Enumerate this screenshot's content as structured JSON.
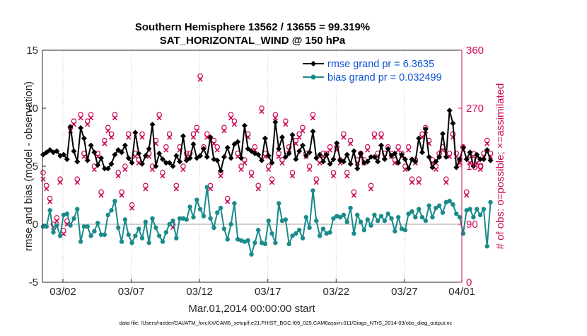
{
  "chart_data": {
    "type": "line",
    "title_line1": "Southern Hemisphere 13562 / 13655 = 99.319%",
    "title_line2": "SAT_HORIZONTAL_WIND @ 150 hPa",
    "ylabel": "rmse and bias (model - observation)",
    "y2label": "# of obs: o=possible; ×=assimilated",
    "xlabel": "Mar.01,2014 00:00:00 start",
    "footer": "data file: /Users/raeder/DAI/ATM_forcXX/CAM6_setup/f.e21.FHIST_BGC.f09_025.CAM6assim.011/Diags_NTrS_2014-03/obs_diag_output.nc",
    "ylim": [
      -5,
      15
    ],
    "y2lim": [
      0,
      360
    ],
    "xlim": [
      0.5,
      31.2
    ],
    "yticks": [
      "-5",
      "0",
      "5",
      "10",
      "15"
    ],
    "y2ticks": [
      "0",
      "90",
      "180",
      "270",
      "360"
    ],
    "xticks": [
      {
        "day": 2,
        "label": "03/02"
      },
      {
        "day": 7,
        "label": "03/07"
      },
      {
        "day": 12,
        "label": "03/12"
      },
      {
        "day": 17,
        "label": "03/17"
      },
      {
        "day": 22,
        "label": "03/22"
      },
      {
        "day": 27,
        "label": "03/27"
      },
      {
        "day": 32,
        "label": "04/01"
      }
    ],
    "series": [
      {
        "name": "rmse grand pr = 6.3635",
        "color": "#000000",
        "marker": "diamond",
        "x0": 0.55,
        "dx": 0.25,
        "values": [
          6.0,
          6.2,
          6.4,
          6.2,
          6.3,
          5.9,
          6.0,
          5.6,
          8.4,
          6.3,
          5.4,
          8.3,
          7.4,
          5.5,
          6.8,
          6.2,
          5.1,
          5.7,
          4.8,
          4.8,
          5.2,
          6.0,
          6.4,
          6.2,
          6.8,
          5.7,
          5.3,
          7.9,
          6.1,
          5.2,
          5.9,
          6.5,
          8.6,
          5.0,
          6.1,
          5.6,
          5.3,
          5.3,
          5.0,
          5.9,
          5.4,
          7.6,
          5.5,
          5.7,
          6.9,
          5.7,
          5.9,
          6.5,
          5.8,
          7.5,
          5.6,
          5.5,
          4.6,
          5.8,
          6.6,
          5.7,
          6.9,
          7.1,
          5.7,
          8.5,
          6.5,
          6.3,
          6.1,
          6.0,
          5.5,
          7.4,
          5.9,
          5.3,
          8.8,
          6.5,
          7.5,
          5.8,
          6.1,
          7.7,
          5.6,
          6.3,
          6.8,
          5.9,
          6.2,
          8.0,
          5.7,
          6.0,
          5.4,
          6.0,
          5.2,
          5.6,
          7.0,
          5.5,
          5.4,
          6.0,
          5.2,
          6.3,
          4.8,
          6.1,
          5.3,
          5.4,
          5.8,
          5.8,
          5.4,
          6.8,
          5.6,
          6.5,
          5.9,
          6.1,
          5.3,
          6.0,
          5.6,
          4.8,
          5.6,
          5.4,
          7.4,
          6.2,
          8.2,
          5.8,
          4.9,
          5.4,
          5.8,
          7.8,
          5.8,
          9.8,
          8.7,
          4.9,
          5.6,
          6.6,
          5.6,
          6.2,
          5.0,
          6.0,
          5.6,
          5.6,
          6.4,
          5.5
        ]
      },
      {
        "name": "bias grand pr = 0.032499",
        "color": "#1a8a8a",
        "marker": "circle",
        "x0": 0.55,
        "dx": 0.25,
        "values": [
          -0.2,
          -0.2,
          1.2,
          -0.7,
          -0.1,
          -1.0,
          0.8,
          0.9,
          -0.1,
          0.5,
          1.3,
          -1.5,
          -0.2,
          -0.2,
          -1.0,
          -0.6,
          0.1,
          -0.9,
          -0.9,
          0.8,
          1.2,
          2.0,
          -0.3,
          -1.5,
          0.4,
          -0.9,
          -1.6,
          -1.0,
          -0.4,
          -1.2,
          0.2,
          -1.6,
          0.5,
          -0.3,
          -1.0,
          -1.5,
          -0.7,
          0.0,
          0.3,
          -1.2,
          0.5,
          0.5,
          0.4,
          1.5,
          0.6,
          2.1,
          1.3,
          0.7,
          3.2,
          0.5,
          -0.3,
          1.0,
          1.4,
          -0.4,
          -1.3,
          0.0,
          1.8,
          -1.3,
          -1.4,
          -1.5,
          -1.4,
          -2.6,
          -1.6,
          -0.5,
          -1.6,
          -1.7,
          0.3,
          -0.8,
          -1.6,
          1.8,
          0.3,
          0.4,
          -1.7,
          -1.0,
          -0.8,
          -0.5,
          -1.2,
          0.6,
          -0.3,
          2.9,
          0.3,
          -1.0,
          -0.4,
          -0.8,
          -0.7,
          0.5,
          0.7,
          0.6,
          0.8,
          0.2,
          1.4,
          -0.8,
          0.8,
          0.2,
          -0.5,
          0.4,
          -0.1,
          0.8,
          0.3,
          0.7,
          0.3,
          0.9,
          0.5,
          -0.6,
          0.6,
          -0.4,
          -0.5,
          0.9,
          1.1,
          0.6,
          1.3,
          0.6,
          0.3,
          1.6,
          0.6,
          1.4,
          1.6,
          1.0,
          1.9,
          2.0,
          1.7,
          0.9,
          0.6,
          -0.8,
          1.2,
          1.3,
          0.6,
          1.3,
          0.8,
          1.3,
          -1.9,
          1.9
        ]
      }
    ],
    "obs_possible": {
      "name": "possible obs",
      "color": "#cc0a5a",
      "marker": "circle",
      "x0": 0.55,
      "dx": 0.25,
      "values": [
        170,
        150,
        130,
        90,
        100,
        160,
        80,
        95,
        240,
        250,
        160,
        260,
        200,
        250,
        260,
        180,
        200,
        140,
        220,
        240,
        230,
        260,
        170,
        140,
        180,
        230,
        120,
        200,
        190,
        230,
        150,
        200,
        180,
        220,
        260,
        170,
        210,
        230,
        90,
        150,
        210,
        180,
        200,
        200,
        230,
        240,
        320,
        210,
        230,
        150,
        220,
        210,
        170,
        240,
        130,
        260,
        250,
        200,
        180,
        190,
        230,
        170,
        210,
        150,
        270,
        200,
        180,
        160,
        260,
        200,
        190,
        250,
        210,
        170,
        220,
        230,
        240,
        200,
        180,
        260,
        160,
        190,
        200,
        200,
        210,
        170,
        210,
        190,
        230,
        170,
        220,
        140,
        190,
        200,
        190,
        210,
        150,
        230,
        200,
        230,
        200,
        210,
        200,
        190,
        210,
        200,
        180,
        210,
        160,
        190,
        160,
        230,
        240,
        220,
        190,
        180,
        200,
        210,
        160,
        200,
        230,
        200,
        190,
        210,
        140,
        190,
        200,
        190,
        180,
        200,
        220,
        200
      ]
    },
    "obs_assimilated": {
      "name": "assimilated obs",
      "color": "#cc0a5a",
      "marker": "x",
      "x0": 0.55,
      "dx": 0.25,
      "values": [
        160,
        145,
        125,
        85,
        95,
        155,
        75,
        90,
        235,
        245,
        155,
        255,
        195,
        245,
        255,
        175,
        195,
        135,
        215,
        235,
        225,
        255,
        165,
        135,
        175,
        225,
        115,
        195,
        185,
        225,
        145,
        195,
        175,
        215,
        255,
        165,
        205,
        225,
        85,
        145,
        205,
        175,
        195,
        195,
        225,
        235,
        315,
        205,
        225,
        145,
        215,
        205,
        165,
        235,
        125,
        255,
        245,
        195,
        175,
        185,
        225,
        165,
        205,
        145,
        265,
        195,
        175,
        155,
        255,
        195,
        185,
        245,
        205,
        165,
        215,
        225,
        235,
        195,
        175,
        255,
        155,
        185,
        195,
        195,
        205,
        165,
        205,
        185,
        225,
        165,
        215,
        135,
        185,
        195,
        185,
        205,
        145,
        225,
        195,
        225,
        195,
        205,
        195,
        185,
        205,
        195,
        175,
        205,
        155,
        185,
        155,
        225,
        235,
        215,
        185,
        175,
        195,
        205,
        155,
        195,
        225,
        195,
        185,
        205,
        135,
        185,
        195,
        185,
        175,
        195,
        215,
        195
      ]
    }
  }
}
